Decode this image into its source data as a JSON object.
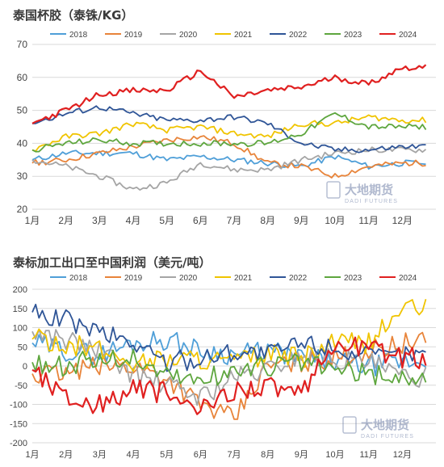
{
  "chart_data": [
    {
      "type": "line",
      "title": "泰国杯胶（泰铢/KG）",
      "xlabel": "",
      "ylabel": "",
      "categories": [
        "1月",
        "2月",
        "3月",
        "4月",
        "5月",
        "6月",
        "7月",
        "8月",
        "9月",
        "10月",
        "11月",
        "12月"
      ],
      "ylim": [
        20,
        70
      ],
      "yticks": [
        20,
        30,
        40,
        50,
        60,
        70
      ],
      "grid": true,
      "legend": "top",
      "series": [
        {
          "name": "2018",
          "color": "#4f9fd8",
          "values": [
            35,
            37,
            37,
            37,
            35,
            36,
            35,
            34,
            33,
            36,
            33,
            34
          ]
        },
        {
          "name": "2019",
          "color": "#e8843a",
          "values": [
            34,
            35,
            37,
            39,
            41,
            42,
            40,
            34,
            33,
            30,
            33,
            34
          ]
        },
        {
          "name": "2020",
          "color": "#a5a5a5",
          "values": [
            35,
            33,
            30,
            26,
            28,
            34,
            32,
            32,
            35,
            37,
            38,
            38
          ]
        },
        {
          "name": "2021",
          "color": "#f0c400",
          "values": [
            38,
            42,
            43,
            46,
            44,
            45,
            43,
            42,
            46,
            46,
            48,
            47
          ]
        },
        {
          "name": "2022",
          "color": "#2f5597",
          "values": [
            46,
            49,
            51,
            49,
            47,
            47,
            48,
            46,
            40,
            38,
            38,
            39
          ]
        },
        {
          "name": "2023",
          "color": "#5ea63e",
          "values": [
            38,
            40,
            41,
            40,
            40,
            40,
            40,
            40,
            43,
            49,
            45,
            45
          ]
        },
        {
          "name": "2024",
          "color": "#e02020",
          "values": [
            46,
            50,
            55,
            56,
            56,
            62,
            54,
            56,
            57,
            60,
            58,
            63
          ]
        }
      ]
    },
    {
      "type": "line",
      "title": "泰标加工出口至中国利润（美元/吨）",
      "xlabel": "",
      "ylabel": "",
      "categories": [
        "1月",
        "2月",
        "3月",
        "4月",
        "5月",
        "6月",
        "7月",
        "8月",
        "9月",
        "10月",
        "11月",
        "12月"
      ],
      "ylim": [
        -200,
        200
      ],
      "yticks": [
        -200,
        -150,
        -100,
        -50,
        0,
        50,
        100,
        150,
        200
      ],
      "grid": true,
      "legend": "top",
      "series": [
        {
          "name": "2018",
          "color": "#4f9fd8",
          "values": [
            60,
            40,
            30,
            60,
            70,
            40,
            30,
            40,
            20,
            10,
            0,
            10
          ]
        },
        {
          "name": "2019",
          "color": "#e8843a",
          "values": [
            -20,
            -20,
            0,
            0,
            -30,
            -100,
            -140,
            0,
            10,
            20,
            40,
            60
          ]
        },
        {
          "name": "2020",
          "color": "#a5a5a5",
          "values": [
            90,
            70,
            40,
            -20,
            -50,
            -80,
            -30,
            -10,
            30,
            20,
            10,
            -30
          ]
        },
        {
          "name": "2021",
          "color": "#f0c400",
          "values": [
            70,
            60,
            40,
            10,
            20,
            20,
            10,
            30,
            20,
            60,
            60,
            150
          ]
        },
        {
          "name": "2022",
          "color": "#2f5597",
          "values": [
            140,
            120,
            90,
            60,
            10,
            20,
            40,
            30,
            60,
            50,
            20,
            30
          ]
        },
        {
          "name": "2023",
          "color": "#5ea63e",
          "values": [
            10,
            0,
            20,
            20,
            -20,
            -40,
            -10,
            0,
            10,
            -10,
            -20,
            -30
          ]
        },
        {
          "name": "2024",
          "color": "#e02020",
          "values": [
            -10,
            -80,
            -100,
            -60,
            -70,
            -120,
            -60,
            -50,
            -80,
            60,
            50,
            20
          ]
        }
      ]
    }
  ],
  "watermark": {
    "brand_cn": "大地期货",
    "brand_en": "DADI FUTURES"
  }
}
